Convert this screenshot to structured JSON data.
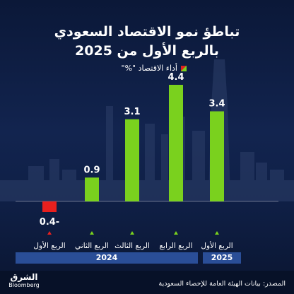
{
  "header": {
    "title_line1": "تباطؤ نمو الاقتصاد السعودي",
    "title_line2": "بالربع الأول من 2025"
  },
  "legend": {
    "label": "أداء الاقتصاد \"%\""
  },
  "years": {
    "y2024": "2024",
    "y2025": "2025"
  },
  "footer": {
    "source": "المصدر: بيانات الهيئة العامة للإحصاء السعودية",
    "logo_ar": "الشرق",
    "logo_en": "Bloomberg"
  },
  "colors": {
    "positive": "#7ad11e",
    "negative": "#e8201e",
    "background": "#12244f",
    "year_band": "#2a4e97"
  },
  "chart_data": {
    "type": "bar",
    "categories": [
      "الربع الأول",
      "الربع الثاني",
      "الربع الثالث",
      "الربع الرابع",
      "الربع الأول"
    ],
    "category_years": [
      "2024",
      "2024",
      "2024",
      "2024",
      "2025"
    ],
    "values": [
      -0.4,
      0.9,
      3.1,
      4.4,
      3.4
    ],
    "value_labels": [
      "0.4-",
      "0.9",
      "3.1",
      "4.4",
      "3.4"
    ],
    "ylim": [
      -0.4,
      4.4
    ],
    "grid": false,
    "legend_position": "top"
  }
}
